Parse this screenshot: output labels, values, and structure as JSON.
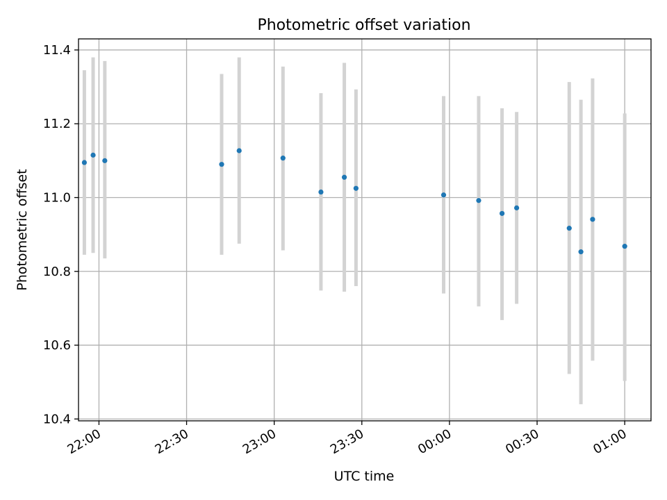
{
  "chart_data": {
    "type": "scatter",
    "title": "Photometric offset variation",
    "xlabel": "UTC time",
    "ylabel": "Photometric offset",
    "x_is_time": true,
    "xlim": [
      "21:53",
      "01:09"
    ],
    "ylim": [
      10.395,
      11.43
    ],
    "x_ticks": [
      {
        "time": "22:00",
        "label": "22:00"
      },
      {
        "time": "22:30",
        "label": "22:30"
      },
      {
        "time": "23:00",
        "label": "23:00"
      },
      {
        "time": "23:30",
        "label": "23:30"
      },
      {
        "time": "00:00",
        "label": "00:00"
      },
      {
        "time": "00:30",
        "label": "00:30"
      },
      {
        "time": "01:00",
        "label": "01:00"
      }
    ],
    "y_ticks": [
      {
        "value": 10.4,
        "label": "10.4"
      },
      {
        "value": 10.6,
        "label": "10.6"
      },
      {
        "value": 10.8,
        "label": "10.8"
      },
      {
        "value": 11.0,
        "label": "11.0"
      },
      {
        "value": 11.2,
        "label": "11.2"
      },
      {
        "value": 11.4,
        "label": "11.4"
      }
    ],
    "grid": true,
    "colors": {
      "points": "#1f77b4",
      "errorbars": "#d3d3d3",
      "grid": "#b0b0b0"
    },
    "points": [
      {
        "time": "21:55",
        "y": 11.095,
        "yerr_low": 10.845,
        "yerr_high": 11.345
      },
      {
        "time": "21:58",
        "y": 11.115,
        "yerr_low": 10.85,
        "yerr_high": 11.38
      },
      {
        "time": "22:02",
        "y": 11.1,
        "yerr_low": 10.835,
        "yerr_high": 11.37
      },
      {
        "time": "22:42",
        "y": 11.09,
        "yerr_low": 10.845,
        "yerr_high": 11.335
      },
      {
        "time": "22:48",
        "y": 11.127,
        "yerr_low": 10.875,
        "yerr_high": 11.38
      },
      {
        "time": "23:03",
        "y": 11.107,
        "yerr_low": 10.857,
        "yerr_high": 11.355
      },
      {
        "time": "23:16",
        "y": 11.015,
        "yerr_low": 10.748,
        "yerr_high": 11.283
      },
      {
        "time": "23:24",
        "y": 11.055,
        "yerr_low": 10.745,
        "yerr_high": 11.365
      },
      {
        "time": "23:28",
        "y": 11.025,
        "yerr_low": 10.76,
        "yerr_high": 11.293
      },
      {
        "time": "23:58",
        "y": 11.007,
        "yerr_low": 10.74,
        "yerr_high": 11.275
      },
      {
        "time": "00:10",
        "y": 10.992,
        "yerr_low": 10.705,
        "yerr_high": 11.275
      },
      {
        "time": "00:18",
        "y": 10.957,
        "yerr_low": 10.668,
        "yerr_high": 11.242
      },
      {
        "time": "00:23",
        "y": 10.972,
        "yerr_low": 10.712,
        "yerr_high": 11.232
      },
      {
        "time": "00:41",
        "y": 10.917,
        "yerr_low": 10.522,
        "yerr_high": 11.313
      },
      {
        "time": "00:45",
        "y": 10.853,
        "yerr_low": 10.44,
        "yerr_high": 11.265
      },
      {
        "time": "00:49",
        "y": 10.941,
        "yerr_low": 10.558,
        "yerr_high": 11.323
      },
      {
        "time": "01:00",
        "y": 10.868,
        "yerr_low": 10.503,
        "yerr_high": 11.228
      }
    ]
  }
}
